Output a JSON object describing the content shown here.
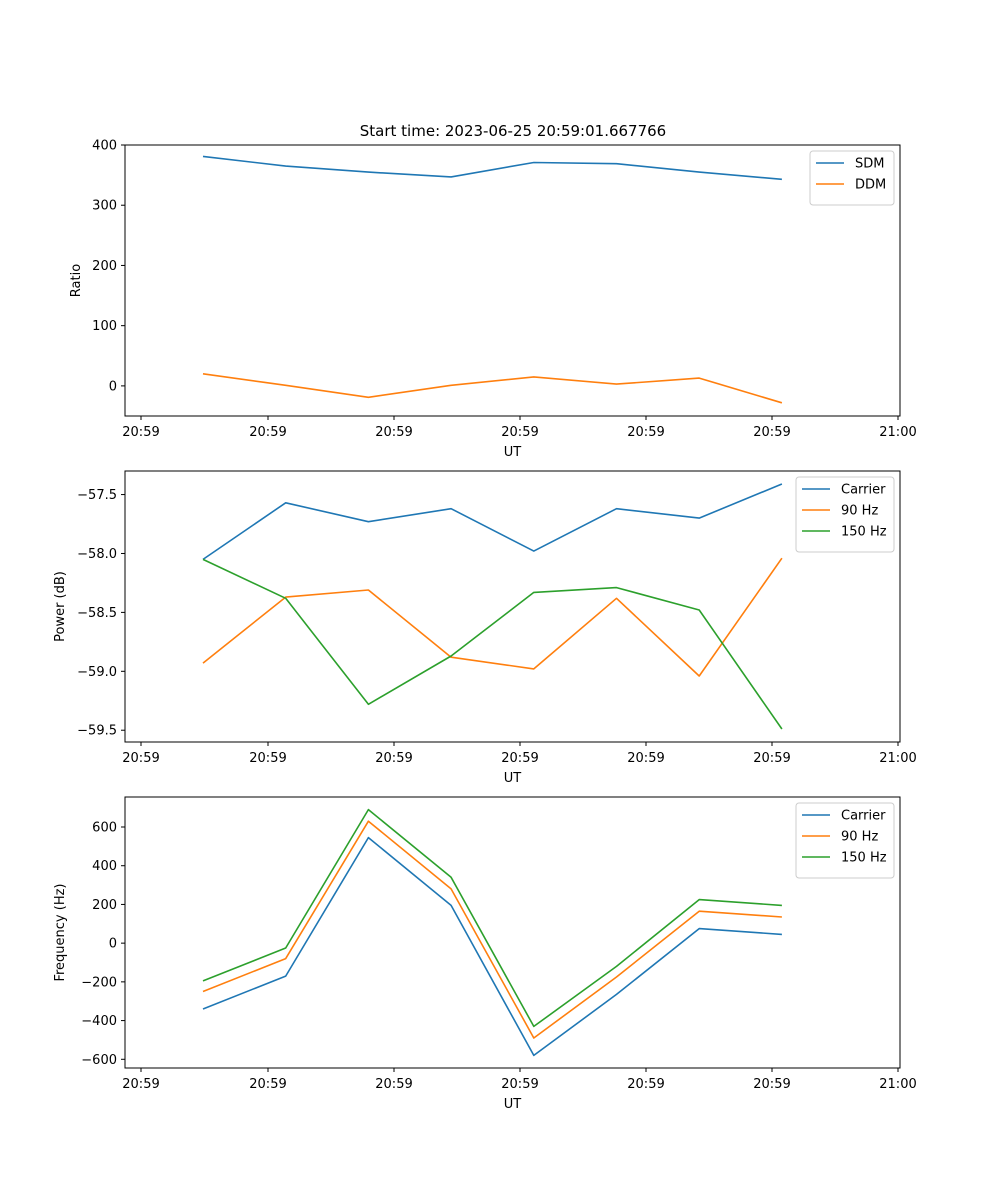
{
  "figure_title": "Start time: 2023-06-25 20:59:01.667766",
  "chart_data": [
    {
      "type": "line",
      "title": "Start time: 2023-06-25 20:59:01.667766",
      "xlabel": "UT",
      "ylabel": "Ratio",
      "x": [
        0,
        1,
        2,
        3,
        4,
        5,
        6,
        7
      ],
      "x_tick_labels": [
        "20:59",
        "20:59",
        "20:59",
        "20:59",
        "20:59",
        "20:59",
        "21:00"
      ],
      "y_ticks": [
        0,
        100,
        200,
        300,
        400
      ],
      "y_tick_labels": [
        "0",
        "100",
        "200",
        "300",
        "400"
      ],
      "ylim": [
        -50,
        400
      ],
      "grid": false,
      "legend_position": "top-right",
      "series": [
        {
          "name": "SDM",
          "color": "#1f77b4",
          "values": [
            381,
            365,
            355,
            347,
            371,
            369,
            355,
            343
          ]
        },
        {
          "name": "DDM",
          "color": "#ff7f0e",
          "values": [
            20,
            1,
            -19,
            1,
            15,
            3,
            13,
            -28
          ]
        }
      ]
    },
    {
      "type": "line",
      "title": "",
      "xlabel": "UT",
      "ylabel": "Power (dB)",
      "x": [
        0,
        1,
        2,
        3,
        4,
        5,
        6,
        7
      ],
      "x_tick_labels": [
        "20:59",
        "20:59",
        "20:59",
        "20:59",
        "20:59",
        "20:59",
        "21:00"
      ],
      "y_ticks": [
        -59.5,
        -59.0,
        -58.5,
        -58.0,
        -57.5
      ],
      "y_tick_labels": [
        "−59.5",
        "−59.0",
        "−58.5",
        "−58.0",
        "−57.5"
      ],
      "ylim": [
        -59.6,
        -57.3
      ],
      "grid": false,
      "legend_position": "top-right",
      "series": [
        {
          "name": "Carrier",
          "color": "#1f77b4",
          "values": [
            -58.05,
            -57.57,
            -57.73,
            -57.62,
            -57.98,
            -57.62,
            -57.7,
            -57.41
          ]
        },
        {
          "name": "90 Hz",
          "color": "#ff7f0e",
          "values": [
            -58.93,
            -58.37,
            -58.31,
            -58.88,
            -58.98,
            -58.38,
            -59.04,
            -58.04
          ]
        },
        {
          "name": "150 Hz",
          "color": "#2ca02c",
          "values": [
            -58.05,
            -58.38,
            -59.28,
            -58.87,
            -58.33,
            -58.29,
            -58.48,
            -59.49
          ]
        }
      ]
    },
    {
      "type": "line",
      "title": "",
      "xlabel": "UT",
      "ylabel": "Frequency (Hz)",
      "x": [
        0,
        1,
        2,
        3,
        4,
        5,
        6,
        7
      ],
      "x_tick_labels": [
        "20:59",
        "20:59",
        "20:59",
        "20:59",
        "20:59",
        "20:59",
        "21:00"
      ],
      "y_ticks": [
        -600,
        -400,
        -200,
        0,
        200,
        400,
        600
      ],
      "y_tick_labels": [
        "−600",
        "−400",
        "−200",
        "0",
        "200",
        "400",
        "600"
      ],
      "ylim": [
        -645,
        755
      ],
      "grid": false,
      "legend_position": "top-right",
      "series": [
        {
          "name": "Carrier",
          "color": "#1f77b4",
          "values": [
            -340,
            -170,
            545,
            195,
            -580,
            -265,
            75,
            45
          ]
        },
        {
          "name": "90 Hz",
          "color": "#ff7f0e",
          "values": [
            -250,
            -80,
            630,
            280,
            -490,
            -175,
            165,
            135
          ]
        },
        {
          "name": "150 Hz",
          "color": "#2ca02c",
          "values": [
            -195,
            -25,
            690,
            340,
            -430,
            -120,
            225,
            195
          ]
        }
      ]
    }
  ]
}
